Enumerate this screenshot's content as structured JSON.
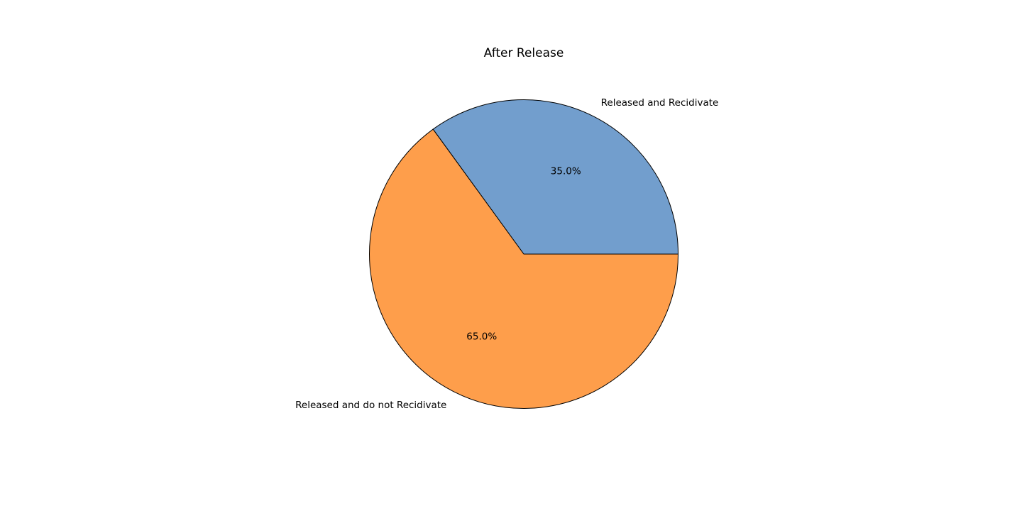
{
  "chart_data": {
    "type": "pie",
    "title": "After Release",
    "slices": [
      {
        "label": "Released and Recidivate",
        "value": 35.0,
        "pct_label": "35.0%",
        "color": "#729ecd"
      },
      {
        "label": "Released and do not Recidivate",
        "value": 65.0,
        "pct_label": "65.0%",
        "color": "#fe9e4b"
      }
    ],
    "start_angle_deg": 0,
    "direction": "counterclockwise",
    "edge_color": "#000000",
    "legend": "none"
  }
}
